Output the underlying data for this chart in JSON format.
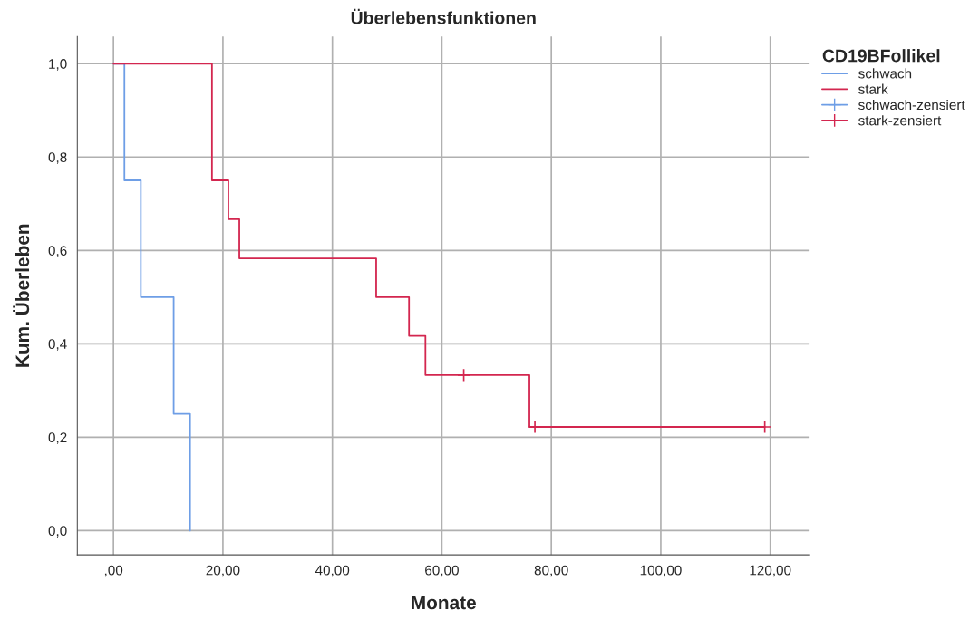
{
  "chart_data": {
    "type": "step",
    "title": "Überlebensfunktionen",
    "xlabel": "Monate",
    "ylabel": "Kum. Überleben",
    "legend_title": "CD19BFollikel",
    "series": [
      {
        "name": "schwach",
        "color": "#6e9ee6",
        "x": [
          0,
          2,
          5,
          11,
          14
        ],
        "values": [
          1.0,
          0.75,
          0.5,
          0.25,
          0.0
        ]
      },
      {
        "name": "stark",
        "color": "#d3264f",
        "x": [
          0,
          18,
          21,
          23,
          48,
          54,
          57,
          76,
          119
        ],
        "values": [
          1.0,
          0.75,
          0.667,
          0.583,
          0.5,
          0.417,
          0.333,
          0.222,
          0.222
        ]
      },
      {
        "name": "schwach-zensiert",
        "type": "scatter",
        "marker": "cross",
        "color": "#6e9ee6"
      },
      {
        "name": "stark-zensiert",
        "type": "scatter",
        "marker": "cross",
        "color": "#d3264f",
        "x": [
          64,
          77,
          119
        ],
        "values": [
          0.333,
          0.222,
          0.222
        ]
      }
    ],
    "xlim": [
      -6.6,
      127.2
    ],
    "ylim": [
      -0.052,
      1.058
    ],
    "xticks": [
      {
        "value": 0,
        "label": ",00"
      },
      {
        "value": 20,
        "label": "20,00"
      },
      {
        "value": 40,
        "label": "40,00"
      },
      {
        "value": 60,
        "label": "60,00"
      },
      {
        "value": 80,
        "label": "80,00"
      },
      {
        "value": 100,
        "label": "100,00"
      },
      {
        "value": 120,
        "label": "120,00"
      }
    ],
    "yticks": [
      {
        "value": 0,
        "label": "0,0"
      },
      {
        "value": 0.2,
        "label": "0,2"
      },
      {
        "value": 0.4,
        "label": "0,4"
      },
      {
        "value": 0.6,
        "label": "0,6"
      },
      {
        "value": 0.8,
        "label": "0,8"
      },
      {
        "value": 1.0,
        "label": "1,0"
      }
    ],
    "grid": true,
    "legend": "top right"
  }
}
